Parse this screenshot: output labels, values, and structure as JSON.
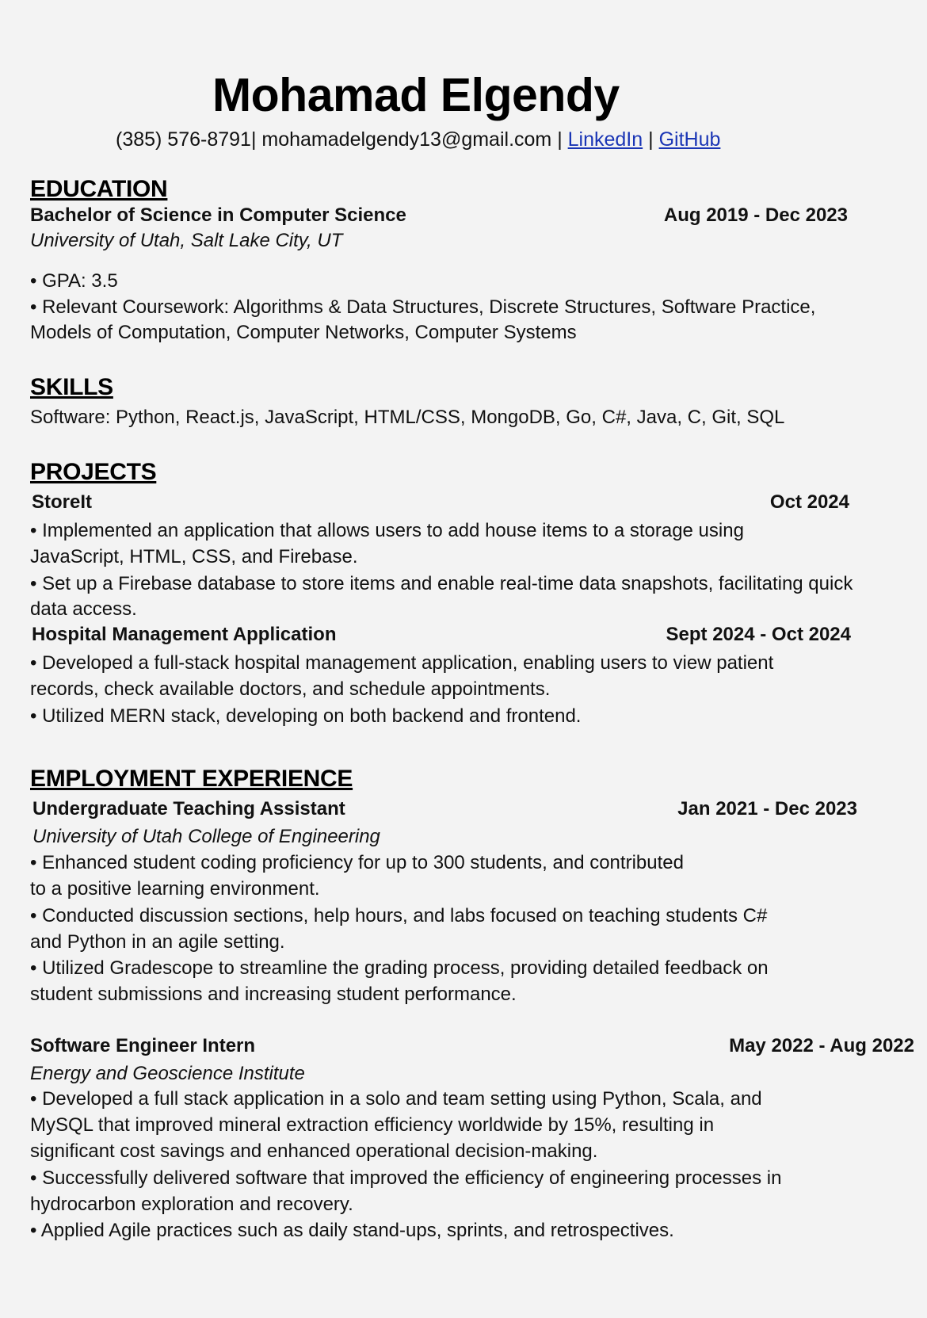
{
  "header": {
    "name": "Mohamad Elgendy",
    "phone_email": "(385) 576-8791| mohamadelgendy13@gmail.com |",
    "linkedin": "LinkedIn",
    "separator": "|",
    "github": "GitHub"
  },
  "education": {
    "heading": "EDUCATION",
    "degree": "Bachelor of Science in Computer Science",
    "date": "Aug 2019 - Dec 2023",
    "school": "University of Utah, Salt Lake City, UT",
    "lines": [
      "• GPA: 3.5",
      "• Relevant Coursework: Algorithms & Data Structures, Discrete Structures, Software Practice,",
      "Models of Computation, Computer Networks, Computer Systems"
    ]
  },
  "skills": {
    "heading": "SKILLS",
    "line": "Software: Python, React.js, JavaScript, HTML/CSS, MongoDB, Go, C#, Java, C, Git, SQL"
  },
  "projects": {
    "heading": "PROJECTS",
    "items": [
      {
        "title": "StoreIt",
        "date": "Oct 2024",
        "lines": [
          "• Implemented an application that allows users to add house items to a storage using",
          "JavaScript, HTML, CSS, and Firebase.",
          "• Set up a Firebase database to store items and enable real-time data snapshots, facilitating quick",
          "data access."
        ]
      },
      {
        "title": "Hospital Management Application",
        "date": "Sept 2024 - Oct 2024",
        "lines": [
          "• Developed a full-stack hospital management application, enabling users to view patient",
          "records, check available doctors, and schedule appointments.",
          "• Utilized MERN stack, developing on both backend and frontend."
        ]
      }
    ]
  },
  "employment": {
    "heading": "EMPLOYMENT EXPERIENCE",
    "items": [
      {
        "title": "Undergraduate Teaching Assistant",
        "date": "Jan 2021 - Dec 2023",
        "org": "University of Utah College of Engineering",
        "lines": [
          "• Enhanced student coding proficiency for up to 300 students, and contributed",
          "to a positive learning environment.",
          "• Conducted discussion sections, help hours, and labs focused on teaching students C#",
          "and Python in an agile setting.",
          "• Utilized Gradescope to streamline the grading process, providing detailed feedback on",
          "student submissions and increasing student performance."
        ]
      },
      {
        "title": "Software Engineer Intern",
        "date": "May 2022 - Aug 2022",
        "org": "Energy and Geoscience Institute",
        "lines": [
          "• Developed a full stack application in a solo and team setting using Python, Scala, and",
          "MySQL that improved mineral extraction efficiency worldwide by 15%, resulting in",
          "significant cost savings and enhanced operational decision-making.",
          "• Successfully delivered software that improved the efficiency of engineering processes in",
          "hydrocarbon exploration and recovery.",
          "• Applied Agile practices such as daily stand-ups, sprints, and retrospectives."
        ]
      }
    ]
  }
}
